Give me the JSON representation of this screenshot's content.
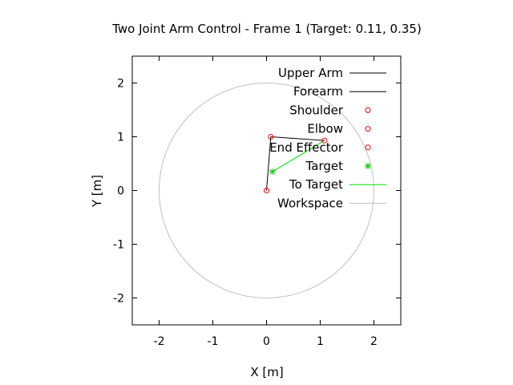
{
  "chart_data": {
    "type": "line",
    "title": "Two Joint Arm Control - Frame 1 (Target: 0.11, 0.35)",
    "xlabel": "X [m]",
    "ylabel": "Y [m]",
    "xlim": [
      -2.5,
      2.5
    ],
    "ylim": [
      -2.5,
      2.5
    ],
    "xticks": [
      -2,
      -1,
      0,
      1,
      2
    ],
    "yticks": [
      -2,
      -1,
      0,
      1,
      2
    ],
    "grid": false,
    "legend_position": "top-right",
    "series": [
      {
        "name": "Upper Arm",
        "style": "line",
        "color": "#000000",
        "x": [
          0,
          0.08
        ],
        "y": [
          0,
          1.0
        ]
      },
      {
        "name": "Forearm",
        "style": "line",
        "color": "#000000",
        "x": [
          0.08,
          1.08
        ],
        "y": [
          1.0,
          0.93
        ]
      },
      {
        "name": "Shoulder",
        "style": "circle",
        "color": "#ff0000",
        "x": [
          0
        ],
        "y": [
          0
        ]
      },
      {
        "name": "Elbow",
        "style": "circle",
        "color": "#ff0000",
        "x": [
          0.08
        ],
        "y": [
          1.0
        ]
      },
      {
        "name": "End Effector",
        "style": "circle",
        "color": "#ff0000",
        "x": [
          1.08
        ],
        "y": [
          0.93
        ]
      },
      {
        "name": "Target",
        "style": "star",
        "color": "#00cc00",
        "x": [
          0.11
        ],
        "y": [
          0.35
        ]
      },
      {
        "name": "To Target",
        "style": "line",
        "color": "#00dd00",
        "x": [
          1.08,
          0.11
        ],
        "y": [
          0.93,
          0.35
        ]
      },
      {
        "name": "Workspace",
        "style": "circle-path",
        "color": "#c0c0c0",
        "center": [
          0,
          0
        ],
        "radius": 2.0
      }
    ]
  }
}
